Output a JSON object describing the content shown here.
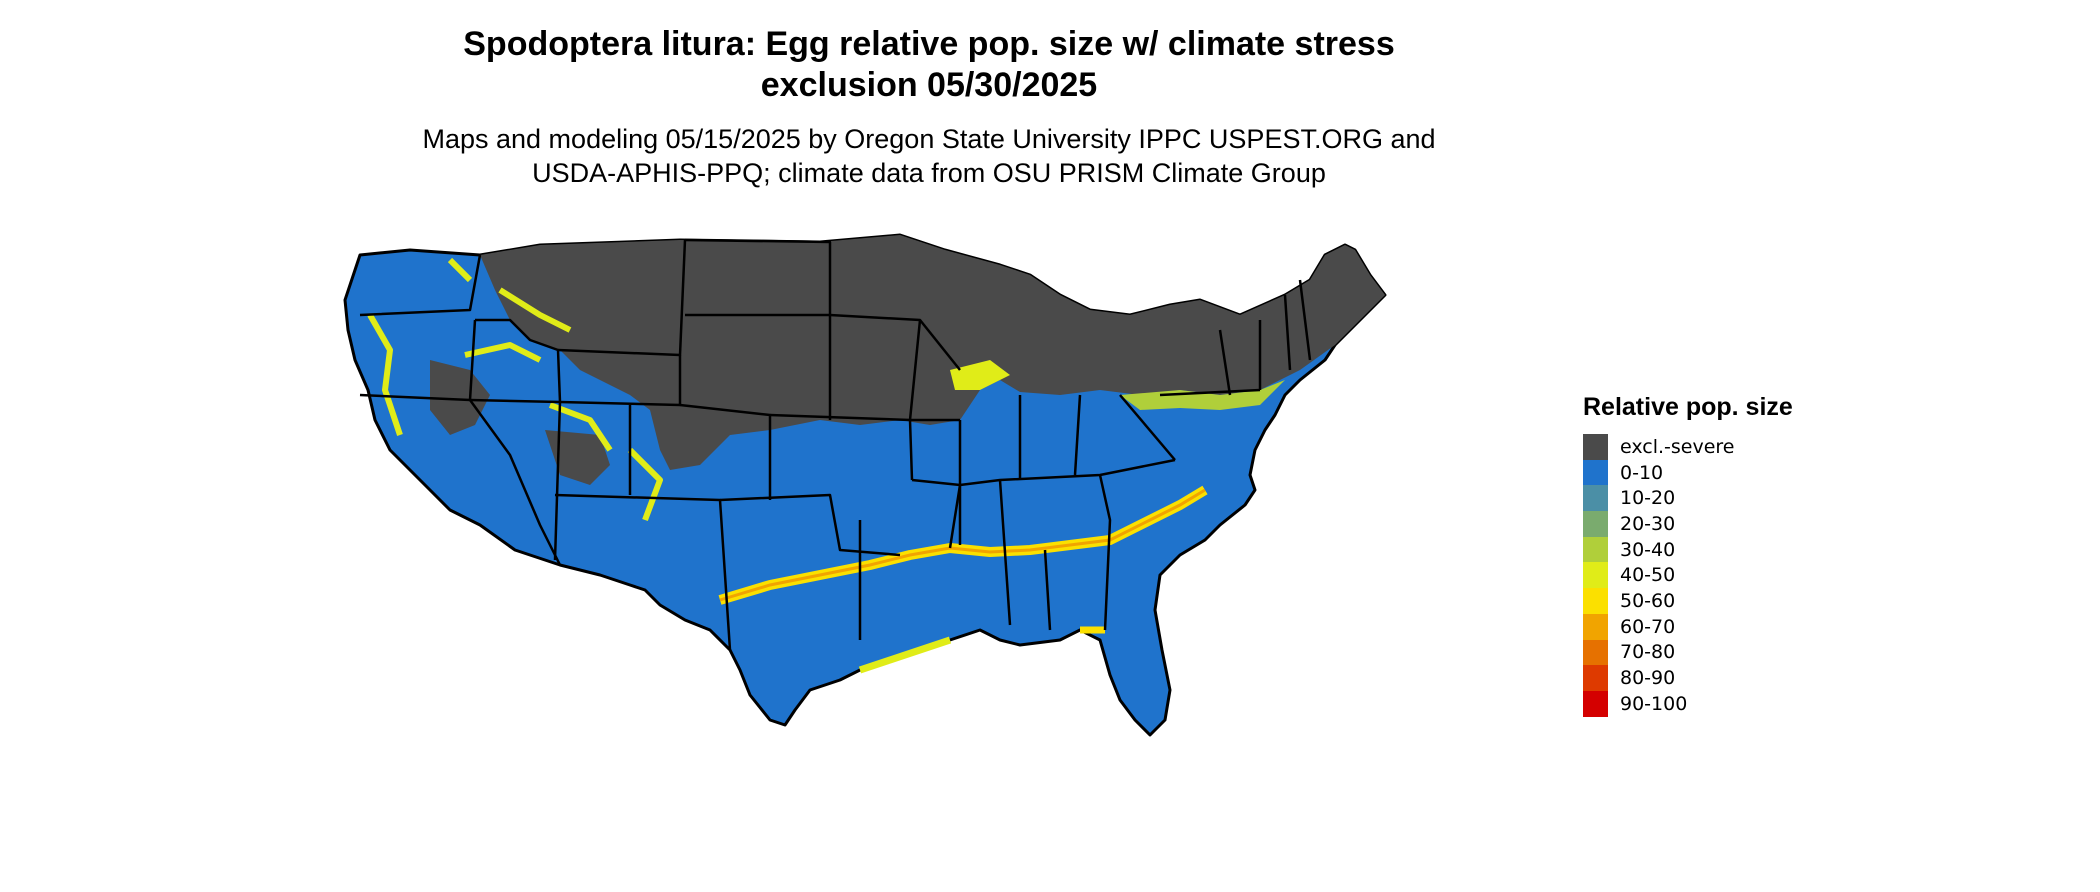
{
  "title_line1": "Spodoptera litura: Egg relative pop. size w/ climate stress",
  "title_line2": "exclusion 05/30/2025",
  "subtitle_line1": "Maps and modeling 05/15/2025 by Oregon State University IPPC USPEST.ORG and",
  "subtitle_line2": "USDA-APHIS-PPQ; climate data from OSU PRISM Climate Group",
  "legend": {
    "title": "Relative pop. size",
    "items": [
      {
        "label": "excl.-severe",
        "color": "#4a4a4a"
      },
      {
        "label": "0-10",
        "color": "#1f73cc"
      },
      {
        "label": "10-20",
        "color": "#4b8fa6"
      },
      {
        "label": "20-30",
        "color": "#7aab6e"
      },
      {
        "label": "30-40",
        "color": "#b0cf3a"
      },
      {
        "label": "40-50",
        "color": "#e0ec18"
      },
      {
        "label": "50-60",
        "color": "#fbe000"
      },
      {
        "label": "60-70",
        "color": "#f1a400"
      },
      {
        "label": "70-80",
        "color": "#e67100"
      },
      {
        "label": "80-90",
        "color": "#de3a00"
      },
      {
        "label": "90-100",
        "color": "#d40000"
      }
    ]
  }
}
